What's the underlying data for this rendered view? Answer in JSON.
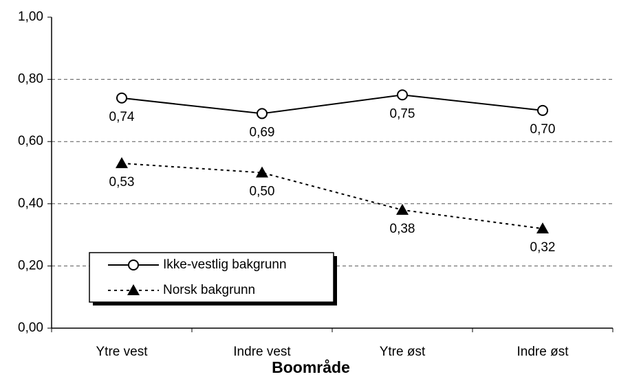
{
  "chart_data": {
    "type": "line",
    "x_label": "Boområde",
    "categories": [
      "Ytre vest",
      "Indre vest",
      "Ytre øst",
      "Indre øst"
    ],
    "series": [
      {
        "name": "Ikke-vestlig bakgrunn",
        "color": "#000000",
        "style": "solid",
        "marker": "circle",
        "values": [
          0.74,
          0.69,
          0.75,
          0.7
        ],
        "value_labels": [
          "0,74",
          "0,69",
          "0,75",
          "0,70"
        ]
      },
      {
        "name": "Norsk bakgrunn",
        "color": "#000000",
        "style": "dashed",
        "marker": "triangle",
        "values": [
          0.53,
          0.5,
          0.38,
          0.32
        ],
        "value_labels": [
          "0,53",
          "0,50",
          "0,38",
          "0,32"
        ]
      }
    ],
    "ylim": [
      0,
      1
    ],
    "yticks": [
      {
        "value": 0,
        "label": "0,00"
      },
      {
        "value": 0.2,
        "label": "0,20"
      },
      {
        "value": 0.4,
        "label": "0,40"
      },
      {
        "value": 0.6,
        "label": "0,60"
      },
      {
        "value": 0.8,
        "label": "0,80"
      },
      {
        "value": 1,
        "label": "1,00"
      }
    ],
    "grid": true,
    "legend": "lower left"
  }
}
